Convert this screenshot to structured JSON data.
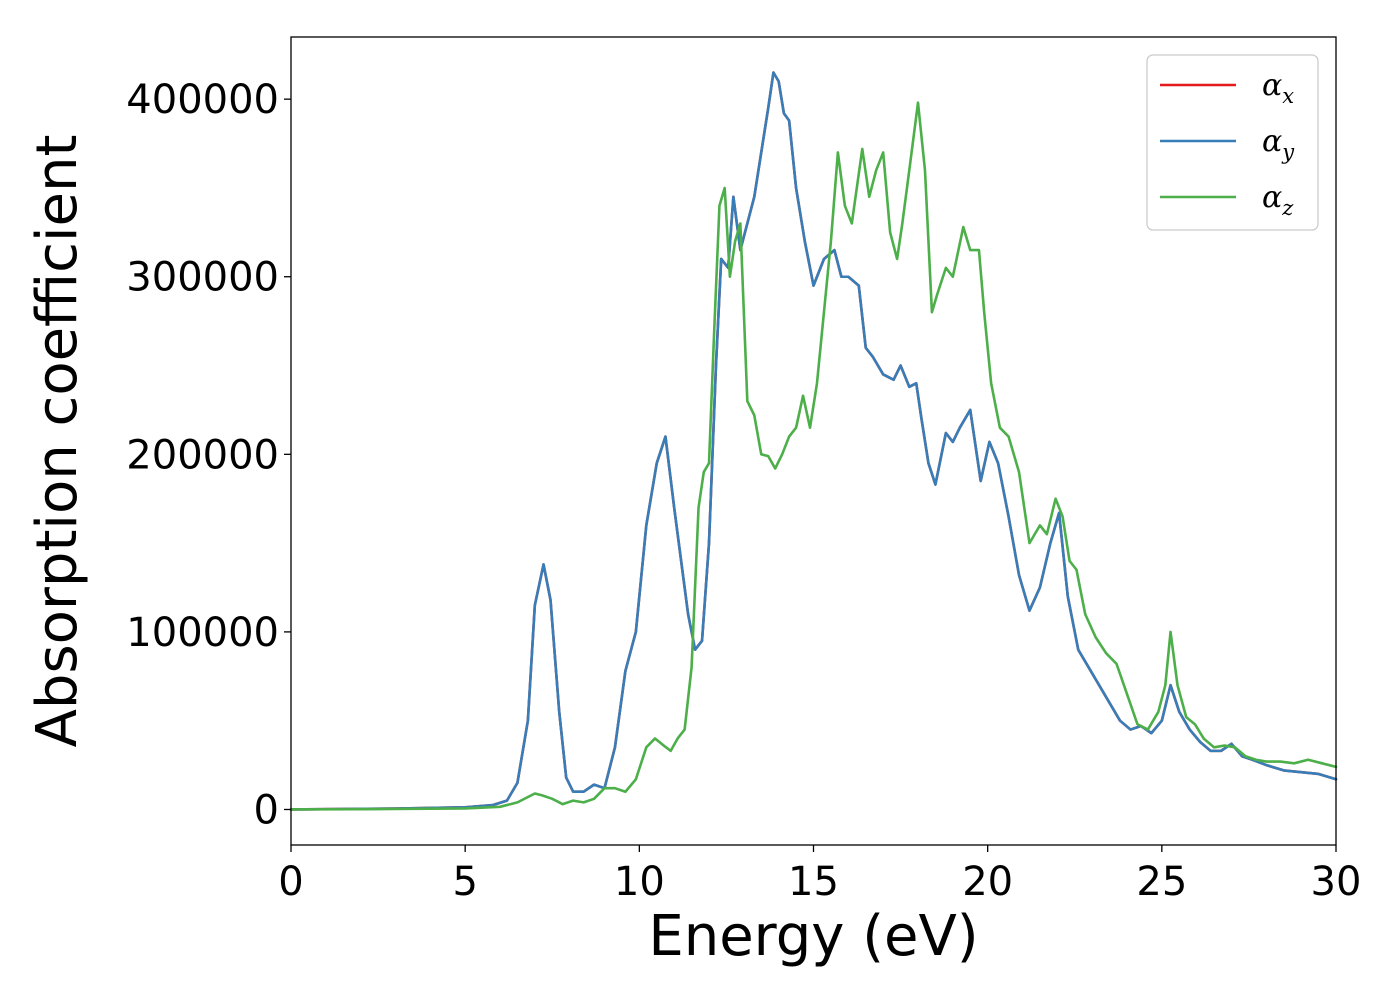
{
  "chart_data": {
    "type": "line",
    "title": "",
    "xlabel": "Energy (eV)",
    "ylabel": "Absorption coefficient",
    "xlim": [
      0,
      30
    ],
    "ylim": [
      -20000,
      435000
    ],
    "xticks": [
      0,
      5,
      10,
      15,
      20,
      25,
      30
    ],
    "xtick_labels": [
      "0",
      "5",
      "10",
      "15",
      "20",
      "25",
      "30"
    ],
    "yticks": [
      0,
      100000,
      200000,
      300000,
      400000
    ],
    "ytick_labels": [
      "0",
      "100000",
      "200000",
      "300000",
      "400000"
    ],
    "grid": false,
    "legend_position": "top-right",
    "series": [
      {
        "name": "α",
        "subscript": "x",
        "color": "#e41a1c",
        "x": [
          0,
          3,
          5,
          5.8,
          6.2,
          6.5,
          6.8,
          7.0,
          7.25,
          7.45,
          7.7,
          7.9,
          8.1,
          8.4,
          8.7,
          9.0,
          9.3,
          9.6,
          9.9,
          10.2,
          10.5,
          10.75,
          11.0,
          11.2,
          11.4,
          11.6,
          11.8,
          12.0,
          12.2,
          12.35,
          12.55,
          12.7,
          12.9,
          13.1,
          13.3,
          13.5,
          13.7,
          13.85,
          14.0,
          14.15,
          14.3,
          14.5,
          14.75,
          15.0,
          15.3,
          15.6,
          15.8,
          16.0,
          16.3,
          16.5,
          16.7,
          17.0,
          17.3,
          17.5,
          17.75,
          17.95,
          18.1,
          18.3,
          18.5,
          18.8,
          19.0,
          19.2,
          19.5,
          19.8,
          20.05,
          20.3,
          20.6,
          20.9,
          21.2,
          21.5,
          21.8,
          22.05,
          22.3,
          22.6,
          22.9,
          23.2,
          23.5,
          23.8,
          24.1,
          24.4,
          24.7,
          25.0,
          25.25,
          25.5,
          25.8,
          26.1,
          26.4,
          26.7,
          27.0,
          27.3,
          27.6,
          28.0,
          28.5,
          29.0,
          29.5,
          30.0
        ],
        "values": [
          0,
          500,
          1200,
          2500,
          5000,
          15000,
          50000,
          115000,
          138000,
          118000,
          55000,
          18000,
          10000,
          10000,
          14000,
          12000,
          35000,
          78000,
          100000,
          160000,
          195000,
          210000,
          170000,
          140000,
          110000,
          90000,
          95000,
          150000,
          250000,
          310000,
          305000,
          345000,
          315000,
          330000,
          345000,
          370000,
          395000,
          415000,
          410000,
          392000,
          388000,
          350000,
          320000,
          295000,
          310000,
          315000,
          300000,
          300000,
          295000,
          260000,
          255000,
          245000,
          242000,
          250000,
          238000,
          240000,
          220000,
          195000,
          183000,
          212000,
          207000,
          215000,
          225000,
          185000,
          207000,
          195000,
          165000,
          132000,
          112000,
          125000,
          150000,
          167000,
          120000,
          90000,
          80000,
          70000,
          60000,
          50000,
          45000,
          47000,
          43000,
          50000,
          70000,
          55000,
          45000,
          38000,
          33000,
          33000,
          37000,
          30000,
          28000,
          25000,
          22000,
          21000,
          20000,
          17000
        ]
      },
      {
        "name": "α",
        "subscript": "y",
        "color": "#377eb8",
        "x": [
          0,
          3,
          5,
          5.8,
          6.2,
          6.5,
          6.8,
          7.0,
          7.25,
          7.45,
          7.7,
          7.9,
          8.1,
          8.4,
          8.7,
          9.0,
          9.3,
          9.6,
          9.9,
          10.2,
          10.5,
          10.75,
          11.0,
          11.2,
          11.4,
          11.6,
          11.8,
          12.0,
          12.2,
          12.35,
          12.55,
          12.7,
          12.9,
          13.1,
          13.3,
          13.5,
          13.7,
          13.85,
          14.0,
          14.15,
          14.3,
          14.5,
          14.75,
          15.0,
          15.3,
          15.6,
          15.8,
          16.0,
          16.3,
          16.5,
          16.7,
          17.0,
          17.3,
          17.5,
          17.75,
          17.95,
          18.1,
          18.3,
          18.5,
          18.8,
          19.0,
          19.2,
          19.5,
          19.8,
          20.05,
          20.3,
          20.6,
          20.9,
          21.2,
          21.5,
          21.8,
          22.05,
          22.3,
          22.6,
          22.9,
          23.2,
          23.5,
          23.8,
          24.1,
          24.4,
          24.7,
          25.0,
          25.25,
          25.5,
          25.8,
          26.1,
          26.4,
          26.7,
          27.0,
          27.3,
          27.6,
          28.0,
          28.5,
          29.0,
          29.5,
          30.0
        ],
        "values": [
          0,
          500,
          1200,
          2500,
          5000,
          15000,
          50000,
          115000,
          138000,
          118000,
          55000,
          18000,
          10000,
          10000,
          14000,
          12000,
          35000,
          78000,
          100000,
          160000,
          195000,
          210000,
          170000,
          140000,
          110000,
          90000,
          95000,
          150000,
          250000,
          310000,
          305000,
          345000,
          315000,
          330000,
          345000,
          370000,
          395000,
          415000,
          410000,
          392000,
          388000,
          350000,
          320000,
          295000,
          310000,
          315000,
          300000,
          300000,
          295000,
          260000,
          255000,
          245000,
          242000,
          250000,
          238000,
          240000,
          220000,
          195000,
          183000,
          212000,
          207000,
          215000,
          225000,
          185000,
          207000,
          195000,
          165000,
          132000,
          112000,
          125000,
          150000,
          167000,
          120000,
          90000,
          80000,
          70000,
          60000,
          50000,
          45000,
          47000,
          43000,
          50000,
          70000,
          55000,
          45000,
          38000,
          33000,
          33000,
          37000,
          30000,
          28000,
          25000,
          22000,
          21000,
          20000,
          17000
        ]
      },
      {
        "name": "α",
        "subscript": "z",
        "color": "#4daf4a",
        "x": [
          0,
          3,
          5,
          6.0,
          6.5,
          7.0,
          7.2,
          7.5,
          7.8,
          8.1,
          8.4,
          8.7,
          9.0,
          9.3,
          9.6,
          9.9,
          10.2,
          10.45,
          10.7,
          10.9,
          11.1,
          11.3,
          11.5,
          11.7,
          11.85,
          12.0,
          12.15,
          12.3,
          12.45,
          12.6,
          12.75,
          12.9,
          13.1,
          13.3,
          13.5,
          13.7,
          13.9,
          14.1,
          14.3,
          14.5,
          14.7,
          14.9,
          15.1,
          15.3,
          15.5,
          15.7,
          15.9,
          16.1,
          16.4,
          16.6,
          16.8,
          17.0,
          17.2,
          17.4,
          17.55,
          17.75,
          18.0,
          18.2,
          18.4,
          18.55,
          18.8,
          19.0,
          19.3,
          19.5,
          19.75,
          19.9,
          20.1,
          20.35,
          20.6,
          20.9,
          21.2,
          21.5,
          21.7,
          21.95,
          22.15,
          22.35,
          22.55,
          22.8,
          23.1,
          23.4,
          23.7,
          24.0,
          24.3,
          24.6,
          24.9,
          25.1,
          25.25,
          25.45,
          25.7,
          25.95,
          26.2,
          26.5,
          26.8,
          27.1,
          27.4,
          27.7,
          28.0,
          28.4,
          28.8,
          29.2,
          29.6,
          30.0
        ],
        "values": [
          0,
          300,
          600,
          1500,
          4000,
          9000,
          8000,
          6000,
          3000,
          5000,
          4000,
          6000,
          12000,
          12000,
          10000,
          17000,
          35000,
          40000,
          36000,
          33000,
          40000,
          45000,
          80000,
          170000,
          190000,
          195000,
          270000,
          340000,
          350000,
          300000,
          320000,
          330000,
          230000,
          222000,
          200000,
          199000,
          192000,
          200000,
          210000,
          215000,
          233000,
          215000,
          240000,
          280000,
          320000,
          370000,
          340000,
          330000,
          372000,
          345000,
          360000,
          370000,
          325000,
          310000,
          330000,
          360000,
          398000,
          360000,
          280000,
          290000,
          305000,
          300000,
          328000,
          315000,
          315000,
          280000,
          240000,
          215000,
          210000,
          190000,
          150000,
          160000,
          155000,
          175000,
          165000,
          140000,
          135000,
          110000,
          97000,
          88000,
          82000,
          65000,
          48000,
          45000,
          55000,
          70000,
          100000,
          70000,
          52000,
          48000,
          40000,
          35000,
          36000,
          35000,
          30000,
          28000,
          27000,
          27000,
          26000,
          28000,
          26000,
          24000
        ]
      }
    ]
  }
}
